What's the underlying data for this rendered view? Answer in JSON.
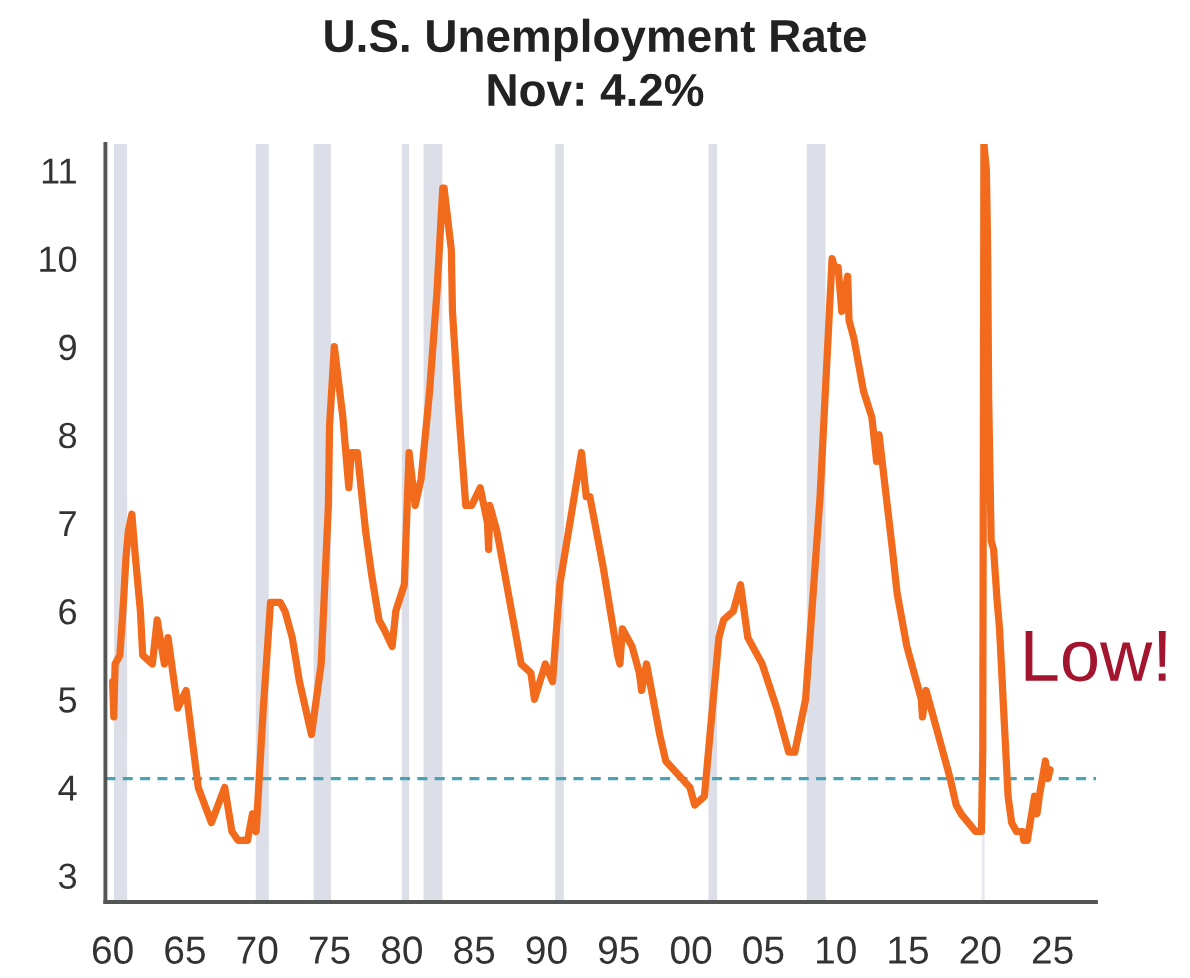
{
  "chart_data": {
    "type": "line",
    "title": "U.S. Unemployment Rate",
    "subtitle": "Nov: 4.2%",
    "x": [
      1960.0,
      1960.08,
      1960.17,
      1960.5,
      1960.75,
      1960.92,
      1961.08,
      1961.33,
      1961.58,
      1961.92,
      1962.08,
      1962.75,
      1963.08,
      1963.58,
      1963.83,
      1964.5,
      1965.08,
      1965.92,
      1966.83,
      1967.75,
      1968.25,
      1968.67,
      1969.33,
      1969.67,
      1969.92,
      1970.42,
      1970.92,
      1971.58,
      1971.92,
      1972.42,
      1972.92,
      1973.75,
      1974.42,
      1974.92,
      1975.0,
      1975.33,
      1975.92,
      1976.33,
      1976.5,
      1976.92,
      1977.5,
      1977.92,
      1978.42,
      1978.75,
      1979.33,
      1979.58,
      1980.17,
      1980.5,
      1980.92,
      1981.33,
      1981.92,
      1982.42,
      1982.83,
      1982.92,
      1983.42,
      1983.5,
      1983.92,
      1984.42,
      1984.83,
      1985.42,
      1985.92,
      1986.0,
      1986.08,
      1986.58,
      1986.92,
      1987.92,
      1988.25,
      1988.92,
      1989.17,
      1989.92,
      1990.42,
      1990.92,
      1991.92,
      1992.42,
      1992.75,
      1993.0,
      1993.92,
      1994.92,
      1995.08,
      1995.25,
      1995.92,
      1996.42,
      1996.58,
      1996.92,
      1997.83,
      1998.25,
      1999.92,
      2000.25,
      2000.92,
      2001.92,
      2002.25,
      2002.92,
      2003.42,
      2003.92,
      2004.92,
      2005.92,
      2006.75,
      2007.17,
      2007.92,
      2008.92,
      2009.75,
      2009.92,
      2010.17,
      2010.42,
      2010.83,
      2010.92,
      2011.25,
      2011.92,
      2012.5,
      2012.83,
      2013.0,
      2013.92,
      2014.25,
      2014.92,
      2015.92,
      2016.0,
      2016.25,
      2016.92,
      2017.92,
      2018.33,
      2018.67,
      2019.67,
      2020.08,
      2020.17,
      2020.25,
      2020.42,
      2020.5,
      2020.58,
      2020.75,
      2020.92,
      2021.17,
      2021.33,
      2021.67,
      2021.92,
      2022.17,
      2022.5,
      2022.92,
      2023.0,
      2023.25,
      2023.75,
      2023.92,
      2024.08,
      2024.5,
      2024.67,
      2024.83
    ],
    "series": [
      {
        "color": "#f26a1b",
        "values": [
          5.2,
          4.8,
          5.4,
          5.5,
          6.1,
          6.6,
          6.9,
          7.1,
          6.6,
          6.0,
          5.5,
          5.4,
          5.9,
          5.4,
          5.7,
          4.9,
          5.1,
          4.0,
          3.6,
          4.0,
          3.5,
          3.4,
          3.4,
          3.7,
          3.5,
          4.9,
          6.1,
          6.1,
          6.0,
          5.7,
          5.2,
          4.6,
          5.4,
          7.2,
          8.1,
          9.0,
          8.2,
          7.4,
          7.8,
          7.8,
          6.9,
          6.4,
          5.9,
          5.8,
          5.6,
          6.0,
          6.3,
          7.8,
          7.2,
          7.5,
          8.5,
          9.6,
          10.8,
          10.8,
          10.1,
          9.4,
          8.3,
          7.2,
          7.2,
          7.4,
          7.0,
          6.7,
          7.2,
          6.9,
          6.6,
          5.7,
          5.4,
          5.3,
          5.0,
          5.4,
          5.2,
          6.3,
          7.3,
          7.8,
          7.3,
          7.3,
          6.5,
          5.5,
          5.4,
          5.8,
          5.6,
          5.3,
          5.1,
          5.4,
          4.6,
          4.3,
          4.0,
          3.8,
          3.9,
          5.7,
          5.9,
          6.0,
          6.3,
          5.7,
          5.4,
          4.9,
          4.4,
          4.4,
          5.0,
          7.3,
          10.0,
          9.9,
          9.9,
          9.4,
          9.8,
          9.3,
          9.1,
          8.5,
          8.2,
          7.7,
          8.0,
          6.7,
          6.2,
          5.6,
          5.0,
          4.8,
          5.1,
          4.7,
          4.1,
          3.8,
          3.7,
          3.5,
          3.5,
          4.4,
          11.3,
          11.0,
          10.2,
          8.4,
          6.8,
          6.7,
          6.1,
          5.8,
          4.7,
          3.9,
          3.6,
          3.5,
          3.5,
          3.4,
          3.4,
          3.9,
          3.7,
          3.9,
          4.3,
          4.1,
          4.2
        ]
      }
    ],
    "xlim": [
      1959.5,
      2028
    ],
    "xticks": [
      {
        "value": 1960,
        "label": "60"
      },
      {
        "value": 1965,
        "label": "65"
      },
      {
        "value": 1970,
        "label": "70"
      },
      {
        "value": 1975,
        "label": "75"
      },
      {
        "value": 1980,
        "label": "80"
      },
      {
        "value": 1985,
        "label": "85"
      },
      {
        "value": 1990,
        "label": "90"
      },
      {
        "value": 1995,
        "label": "95"
      },
      {
        "value": 2000,
        "label": "00"
      },
      {
        "value": 2005,
        "label": "05"
      },
      {
        "value": 2010,
        "label": "10"
      },
      {
        "value": 2015,
        "label": "15"
      },
      {
        "value": 2020,
        "label": "20"
      },
      {
        "value": 2025,
        "label": "25"
      }
    ],
    "ylim": [
      2.7,
      11.3
    ],
    "yticks": [
      3,
      4,
      5,
      6,
      7,
      8,
      9,
      10,
      11
    ],
    "ref_lines": [
      {
        "axis": "y",
        "value": 4.1,
        "color": "#4aa3b3",
        "line_style": "dashed"
      }
    ],
    "bands": [
      {
        "axis": "x",
        "from": 1960.1,
        "to": 1961.0,
        "color": "#dcdee8"
      },
      {
        "axis": "x",
        "from": 1969.9,
        "to": 1970.8,
        "color": "#dcdee8"
      },
      {
        "axis": "x",
        "from": 1973.9,
        "to": 1975.1,
        "color": "#dcdee8"
      },
      {
        "axis": "x",
        "from": 1980.0,
        "to": 1980.5,
        "color": "#dcdee8"
      },
      {
        "axis": "x",
        "from": 1981.5,
        "to": 1982.8,
        "color": "#dcdee8"
      },
      {
        "axis": "x",
        "from": 1990.6,
        "to": 1991.2,
        "color": "#dcdee8"
      },
      {
        "axis": "x",
        "from": 2001.2,
        "to": 2001.8,
        "color": "#dcdee8"
      },
      {
        "axis": "x",
        "from": 2008.0,
        "to": 2009.3,
        "color": "#dcdee8"
      },
      {
        "axis": "x",
        "from": 2020.1,
        "to": 2020.3,
        "color": "#e6e8ef"
      }
    ],
    "annotations": [
      "Low!"
    ],
    "line_style": "solid"
  }
}
